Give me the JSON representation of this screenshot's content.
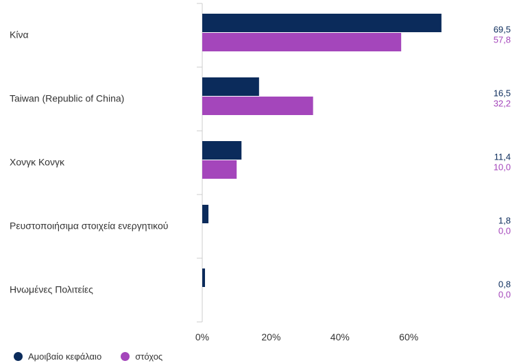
{
  "colors": {
    "fund": "#0b2b5b",
    "target": "#a446bb",
    "axis": "#cccccc",
    "text": "#333333"
  },
  "chart_data": {
    "type": "bar",
    "orientation": "horizontal",
    "categories": [
      "Κίνα",
      "Taiwan (Republic of China)",
      "Χονγκ Κονγκ",
      "Ρευστοποιήσιμα στοιχεία ενεργητικού",
      "Ηνωμένες Πολιτείες"
    ],
    "series": [
      {
        "name": "Αμοιβαίο κεφάλαιο",
        "values": [
          69.5,
          16.5,
          11.4,
          1.8,
          0.8
        ],
        "labels": [
          "69,5",
          "16,5",
          "11,4",
          "1,8",
          "0,8"
        ],
        "color": "#0b2b5b"
      },
      {
        "name": "στόχος",
        "values": [
          57.8,
          32.2,
          10.0,
          0.0,
          0.0
        ],
        "labels": [
          "57,8",
          "32,2",
          "10,0",
          "0,0",
          "0,0"
        ],
        "color": "#a446bb"
      }
    ],
    "xlim": [
      0,
      78
    ],
    "xticks": [
      0,
      20,
      40,
      60
    ],
    "xtick_labels": [
      "0%",
      "20%",
      "40%",
      "60%"
    ],
    "grid": false,
    "legend_position": "bottom-left"
  }
}
